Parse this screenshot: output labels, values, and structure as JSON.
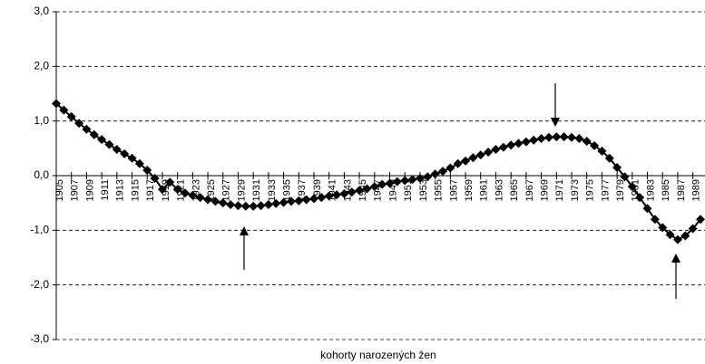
{
  "chart_data": {
    "type": "line",
    "x_label": "kohorty narozených žen",
    "x": [
      1905,
      1906,
      1907,
      1908,
      1909,
      1910,
      1911,
      1912,
      1913,
      1914,
      1915,
      1916,
      1917,
      1918,
      1919,
      1920,
      1921,
      1922,
      1923,
      1924,
      1925,
      1926,
      1927,
      1928,
      1929,
      1930,
      1931,
      1932,
      1933,
      1934,
      1935,
      1936,
      1937,
      1938,
      1939,
      1940,
      1941,
      1942,
      1943,
      1944,
      1945,
      1946,
      1947,
      1948,
      1949,
      1950,
      1951,
      1952,
      1953,
      1954,
      1955,
      1956,
      1957,
      1958,
      1959,
      1960,
      1961,
      1962,
      1963,
      1964,
      1965,
      1966,
      1967,
      1968,
      1969,
      1970,
      1971,
      1972,
      1973,
      1974,
      1975,
      1976,
      1977,
      1978,
      1979,
      1980,
      1981,
      1982,
      1983,
      1984,
      1985,
      1986,
      1987,
      1988,
      1989,
      1990
    ],
    "series": [
      {
        "color": "#000000",
        "values": [
          1.32,
          1.2,
          1.08,
          0.96,
          0.85,
          0.75,
          0.66,
          0.57,
          0.48,
          0.4,
          0.32,
          0.22,
          0.1,
          -0.05,
          -0.25,
          -0.12,
          -0.25,
          -0.32,
          -0.36,
          -0.4,
          -0.44,
          -0.47,
          -0.5,
          -0.53,
          -0.55,
          -0.56,
          -0.56,
          -0.55,
          -0.53,
          -0.51,
          -0.49,
          -0.47,
          -0.46,
          -0.44,
          -0.42,
          -0.4,
          -0.37,
          -0.35,
          -0.33,
          -0.3,
          -0.27,
          -0.24,
          -0.2,
          -0.16,
          -0.14,
          -0.11,
          -0.09,
          -0.07,
          -0.05,
          -0.02,
          0.03,
          0.08,
          0.14,
          0.22,
          0.27,
          0.33,
          0.38,
          0.43,
          0.48,
          0.52,
          0.56,
          0.59,
          0.62,
          0.65,
          0.68,
          0.7,
          0.71,
          0.71,
          0.7,
          0.68,
          0.63,
          0.55,
          0.45,
          0.32,
          0.15,
          -0.02,
          -0.2,
          -0.4,
          -0.6,
          -0.8,
          -0.95,
          -1.08,
          -1.17,
          -1.1,
          -0.97,
          -0.8
        ]
      }
    ],
    "xlim": [
      1905,
      1990.6
    ],
    "xticks": [
      1905,
      1907,
      1909,
      1911,
      1913,
      1915,
      1917,
      1919,
      1921,
      1923,
      1925,
      1927,
      1929,
      1931,
      1933,
      1935,
      1937,
      1939,
      1941,
      1943,
      1945,
      1947,
      1949,
      1951,
      1953,
      1955,
      1957,
      1959,
      1961,
      1963,
      1965,
      1967,
      1969,
      1971,
      1973,
      1975,
      1977,
      1979,
      1981,
      1983,
      1985,
      1987,
      1989
    ],
    "ylim": [
      -3,
      3
    ],
    "yticks": [
      {
        "value": -3,
        "label": "-3,0"
      },
      {
        "value": -2,
        "label": "-2,0"
      },
      {
        "value": -1,
        "label": "-1,0"
      },
      {
        "value": 0,
        "label": "0,0"
      },
      {
        "value": 1,
        "label": "1,0"
      },
      {
        "value": 2,
        "label": "2,0"
      },
      {
        "value": 3,
        "label": "3,0"
      }
    ],
    "grid": true
  }
}
